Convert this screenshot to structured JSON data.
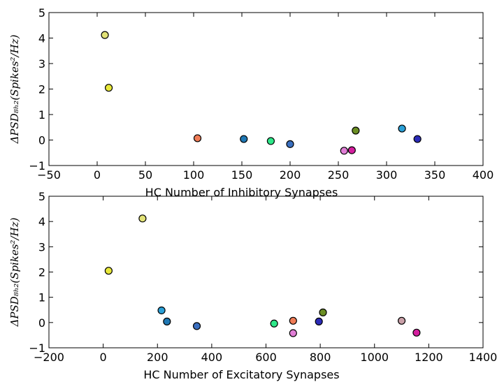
{
  "chart_data": [
    {
      "type": "scatter",
      "xlabel": "HC Number of Inhibitory Synapses",
      "ylabel": "ΔPSD₈ₕ₂(Spikes²/Hz)",
      "xlim": [
        -50,
        400
      ],
      "ylim": [
        -1,
        5
      ],
      "xticks": [
        "−50",
        "0",
        "50",
        "100",
        "150",
        "200",
        "250",
        "300",
        "350",
        "400"
      ],
      "yticks": [
        "−1",
        "0",
        "1",
        "2",
        "3",
        "4",
        "5"
      ],
      "grid": false,
      "points": [
        {
          "x": 8,
          "y": 4.12,
          "color": "#e2e277"
        },
        {
          "x": 12,
          "y": 2.05,
          "color": "#e8e83a"
        },
        {
          "x": 104,
          "y": 0.07,
          "color": "#f07c56"
        },
        {
          "x": 152,
          "y": 0.04,
          "color": "#1f78b4"
        },
        {
          "x": 180,
          "y": -0.04,
          "color": "#2ee889"
        },
        {
          "x": 200,
          "y": -0.16,
          "color": "#3a6fbf"
        },
        {
          "x": 256,
          "y": -0.42,
          "color": "#e07ed6"
        },
        {
          "x": 264,
          "y": -0.4,
          "color": "#d41e9e"
        },
        {
          "x": 268,
          "y": 0.37,
          "color": "#6b8e23"
        },
        {
          "x": 316,
          "y": 0.45,
          "color": "#2a9fd6"
        },
        {
          "x": 332,
          "y": 0.04,
          "color": "#2b2bb8"
        }
      ]
    },
    {
      "type": "scatter",
      "xlabel": "HC Number of Excitatory Synapses",
      "ylabel": "ΔPSD₈ₕ₂(Spikes²/Hz)",
      "xlim": [
        -200,
        1400
      ],
      "ylim": [
        -1,
        5
      ],
      "xticks": [
        "−200",
        "0",
        "200",
        "400",
        "600",
        "800",
        "1000",
        "1200",
        "1400"
      ],
      "yticks": [
        "−1",
        "0",
        "1",
        "2",
        "3",
        "4",
        "5"
      ],
      "grid": false,
      "points": [
        {
          "x": 145,
          "y": 4.12,
          "color": "#e2e277"
        },
        {
          "x": 20,
          "y": 2.05,
          "color": "#e8e83a"
        },
        {
          "x": 215,
          "y": 0.48,
          "color": "#2a9fd6"
        },
        {
          "x": 235,
          "y": 0.04,
          "color": "#1f78b4"
        },
        {
          "x": 345,
          "y": -0.14,
          "color": "#3a6fbf"
        },
        {
          "x": 630,
          "y": -0.04,
          "color": "#2ee889"
        },
        {
          "x": 700,
          "y": 0.07,
          "color": "#f07c56"
        },
        {
          "x": 700,
          "y": -0.42,
          "color": "#e07ed6"
        },
        {
          "x": 795,
          "y": 0.04,
          "color": "#2b2bb8"
        },
        {
          "x": 810,
          "y": 0.4,
          "color": "#6b8e23"
        },
        {
          "x": 1100,
          "y": 0.07,
          "color": "#c9a0a8"
        },
        {
          "x": 1155,
          "y": -0.4,
          "color": "#d41e9e"
        }
      ]
    }
  ]
}
